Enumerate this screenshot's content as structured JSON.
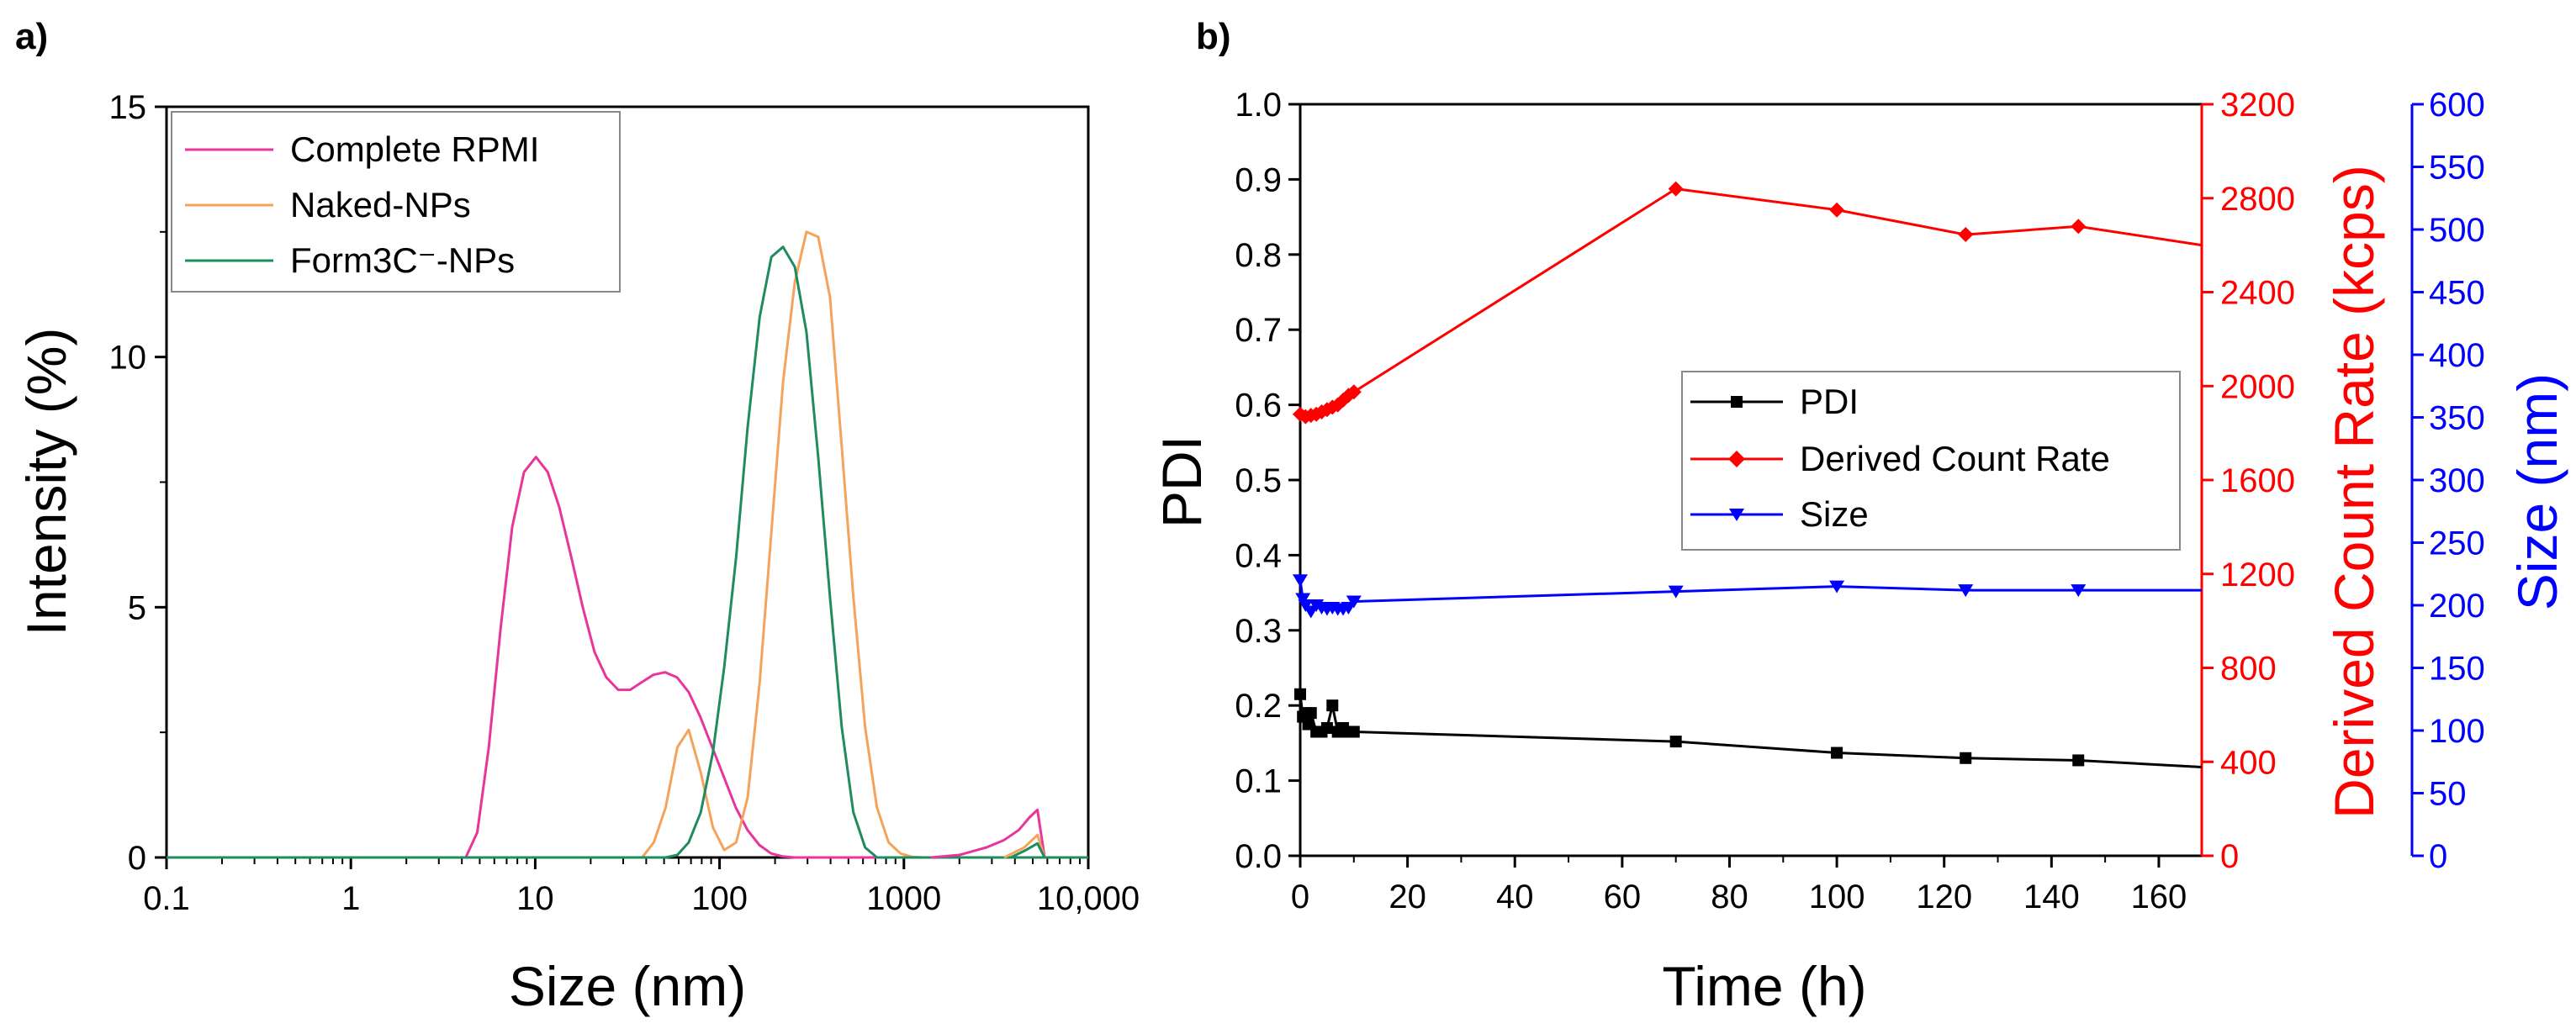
{
  "panel_labels": {
    "a": "a)",
    "b": "b)"
  },
  "chart_data": [
    {
      "panel": "a)",
      "type": "line",
      "xscale": "log",
      "xlabel": "Size (nm)",
      "ylabel": "Intensity (%)",
      "xlim": [
        0.1,
        10000
      ],
      "ylim": [
        0,
        15
      ],
      "xticks": [
        0.1,
        1,
        10,
        100,
        1000,
        10000
      ],
      "xtick_labels": [
        "0.1",
        "1",
        "10",
        "100",
        "1000",
        "10,000"
      ],
      "yticks": [
        0,
        5,
        10,
        15
      ],
      "ytick_labels": [
        "0",
        "5",
        "10",
        "15"
      ],
      "legend_position": "top-left",
      "series": [
        {
          "name": "Complete RPMI",
          "color": "#e8359b",
          "x": [
            0.1,
            4.2,
            4.85,
            5.6,
            6.5,
            7.5,
            8.7,
            10.1,
            11.7,
            13.5,
            15.7,
            18.1,
            21.0,
            24.3,
            28.2,
            32.7,
            37.8,
            43.8,
            50.7,
            58.8,
            68.1,
            78.8,
            91.3,
            105.7,
            122.4,
            141.8,
            164.2,
            190.1,
            220.2,
            255,
            10000
          ],
          "y": [
            0,
            0,
            0.5,
            2.2,
            4.6,
            6.6,
            7.7,
            8.0,
            7.7,
            7.0,
            6.0,
            5.0,
            4.1,
            3.6,
            3.35,
            3.35,
            3.5,
            3.65,
            3.7,
            3.6,
            3.3,
            2.8,
            2.2,
            1.6,
            1.0,
            0.55,
            0.25,
            0.08,
            0.02,
            0,
            0
          ]
        },
        {
          "name": "Naked-NPs",
          "color": "#f5a35a",
          "x": [
            0.1,
            38,
            44,
            51,
            59,
            68,
            79,
            92,
            106,
            123,
            142,
            165,
            191,
            221,
            256,
            296,
            343,
            397,
            460,
            532,
            616,
            714,
            826,
            957,
            1108,
            1283,
            10000
          ],
          "y": [
            0,
            0,
            0.3,
            1.0,
            2.2,
            2.55,
            1.7,
            0.6,
            0.15,
            0.3,
            1.2,
            3.5,
            6.5,
            9.5,
            11.5,
            12.5,
            12.4,
            11.2,
            8.2,
            5.2,
            2.6,
            1.0,
            0.3,
            0.08,
            0.01,
            0,
            0
          ]
        },
        {
          "name": "Form3C⁻-NPs",
          "color": "#1f8c5d",
          "x": [
            0.1,
            51,
            59,
            68,
            79,
            92,
            106,
            123,
            142,
            165,
            191,
            221,
            256,
            296,
            343,
            397,
            460,
            532,
            616,
            714,
            10000
          ],
          "y": [
            0,
            0,
            0.05,
            0.3,
            0.9,
            2.1,
            3.8,
            6.0,
            8.6,
            10.8,
            12.0,
            12.2,
            11.8,
            10.5,
            8.0,
            5.2,
            2.6,
            0.9,
            0.2,
            0,
            0
          ]
        }
      ],
      "tail_series": [
        {
          "name": "Complete RPMI",
          "x": [
            1400,
            2000,
            2800,
            3500,
            4200,
            4800,
            5300,
            5800
          ],
          "y": [
            0,
            0.05,
            0.2,
            0.35,
            0.55,
            0.8,
            0.95,
            0
          ]
        },
        {
          "name": "Naked-NPs",
          "x": [
            3500,
            4500,
            5300,
            5800
          ],
          "y": [
            0,
            0.2,
            0.45,
            0
          ]
        },
        {
          "name": "Form3C⁻-NPs",
          "x": [
            3800,
            4600,
            5300,
            5800
          ],
          "y": [
            0,
            0.15,
            0.28,
            0
          ]
        }
      ]
    },
    {
      "panel": "b)",
      "type": "line",
      "xlabel": "Time (h)",
      "ylabel": "PDI",
      "y2label": "Derived Count Rate (kcps)",
      "y3label": "Size (nm)",
      "xlim": [
        0,
        168
      ],
      "ylim": [
        0,
        1.0
      ],
      "y2lim": [
        0,
        3200
      ],
      "y3lim": [
        0,
        600
      ],
      "xticks": [
        0,
        20,
        40,
        60,
        80,
        100,
        120,
        140,
        160
      ],
      "xtick_labels": [
        "0",
        "20",
        "40",
        "60",
        "80",
        "100",
        "120",
        "140",
        "160"
      ],
      "yticks": [
        0,
        0.1,
        0.2,
        0.3,
        0.4,
        0.5,
        0.6,
        0.7,
        0.8,
        0.9,
        1.0
      ],
      "ytick_labels": [
        "0.0",
        "0.1",
        "0.2",
        "0.3",
        "0.4",
        "0.5",
        "0.6",
        "0.7",
        "0.8",
        "0.9",
        "1.0"
      ],
      "y2ticks": [
        0,
        400,
        800,
        1200,
        1600,
        2000,
        2400,
        2800,
        3200
      ],
      "y2tick_labels": [
        "0",
        "400",
        "800",
        "1200",
        "1600",
        "2000",
        "2400",
        "2800",
        "3200"
      ],
      "y3ticks": [
        0,
        50,
        100,
        150,
        200,
        250,
        300,
        350,
        400,
        450,
        500,
        550,
        600
      ],
      "y3tick_labels": [
        "0",
        "50",
        "100",
        "150",
        "200",
        "250",
        "300",
        "350",
        "400",
        "450",
        "500",
        "550",
        "600"
      ],
      "legend_position": "center-right",
      "series": [
        {
          "name": "PDI",
          "axis": "left",
          "color": "#000000",
          "marker": "square",
          "x": [
            0,
            0.5,
            1,
            1.5,
            2,
            3,
            4,
            5,
            6,
            7,
            8,
            9,
            10,
            70,
            100,
            124,
            145,
            168
          ],
          "y": [
            0.215,
            0.185,
            0.19,
            0.175,
            0.19,
            0.165,
            0.165,
            0.17,
            0.2,
            0.165,
            0.17,
            0.165,
            0.165,
            0.152,
            0.137,
            0.13,
            0.127,
            0.118
          ]
        },
        {
          "name": "Derived Count Rate",
          "axis": "right",
          "color": "#ff0000",
          "marker": "diamond",
          "x": [
            0,
            1,
            2,
            3,
            4,
            5,
            6,
            7,
            8,
            9,
            10,
            70,
            100,
            124,
            145,
            168
          ],
          "y": [
            1880,
            1870,
            1875,
            1880,
            1890,
            1900,
            1910,
            1920,
            1940,
            1960,
            1975,
            2840,
            2750,
            2645,
            2680,
            2600
          ]
        },
        {
          "name": "Size",
          "axis": "right2",
          "color": "#0000ff",
          "marker": "triangle-down",
          "x": [
            0,
            0.5,
            1,
            2,
            3,
            4,
            5,
            6,
            7,
            8,
            9,
            10,
            70,
            100,
            124,
            145,
            168
          ],
          "y": [
            220,
            205,
            200,
            195,
            200,
            198,
            197,
            198,
            197,
            197,
            198,
            203,
            211,
            215,
            212,
            212,
            212
          ]
        }
      ]
    }
  ]
}
